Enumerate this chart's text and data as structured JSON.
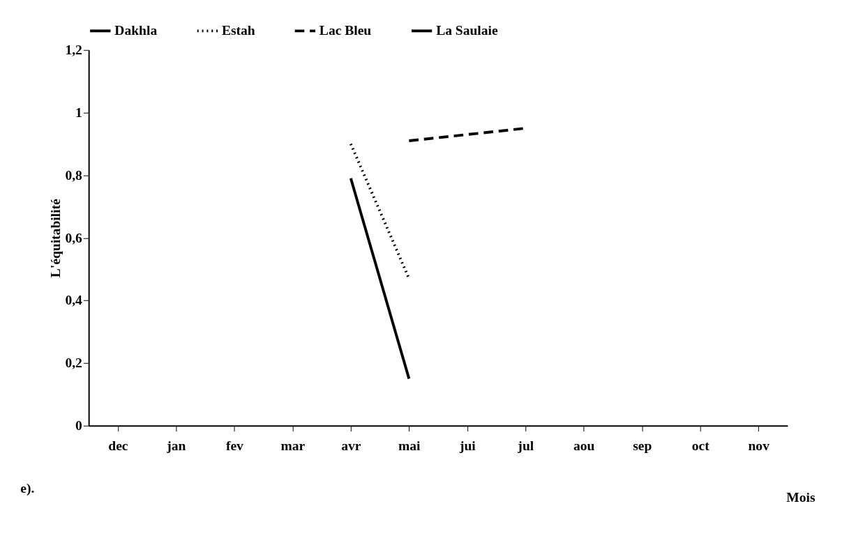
{
  "chart_data": {
    "type": "line",
    "xlabel": "Mois",
    "ylabel": "L'équitabilité",
    "categories": [
      "dec",
      "jan",
      "fev",
      "mar",
      "avr",
      "mai",
      "jui",
      "jul",
      "aou",
      "sep",
      "oct",
      "nov"
    ],
    "series": [
      {
        "name": "Dakhla",
        "color": "#000000",
        "line_style": "solid",
        "values": [
          null,
          null,
          null,
          null,
          0.79,
          0.15,
          null,
          null,
          null,
          null,
          null,
          null
        ]
      },
      {
        "name": "Estah",
        "color": "#000000",
        "line_style": "dotted",
        "values": [
          null,
          null,
          null,
          null,
          0.9,
          0.47,
          null,
          null,
          null,
          null,
          null,
          null
        ]
      },
      {
        "name": "Lac Bleu",
        "color": "#000000",
        "line_style": "dashed",
        "values": [
          null,
          null,
          null,
          null,
          null,
          0.91,
          null,
          0.95,
          null,
          null,
          null,
          null
        ]
      },
      {
        "name": "La Saulaie",
        "color": "#000000",
        "line_style": "solid",
        "values": [
          null,
          null,
          null,
          null,
          null,
          null,
          null,
          null,
          null,
          null,
          null,
          null
        ]
      }
    ],
    "ylim": [
      0,
      1.2
    ],
    "yticks": [
      0,
      {
        "value": 0.2,
        "label": "0,2"
      },
      {
        "value": 0.4,
        "label": "0,4"
      },
      {
        "value": 0.6,
        "label": "0,6"
      },
      {
        "value": 0.8,
        "label": "0,8"
      },
      1,
      {
        "value": 1.2,
        "label": "1,2"
      }
    ],
    "grid": false,
    "legend": "top",
    "marker": "none",
    "annotations": [
      "e)."
    ]
  }
}
